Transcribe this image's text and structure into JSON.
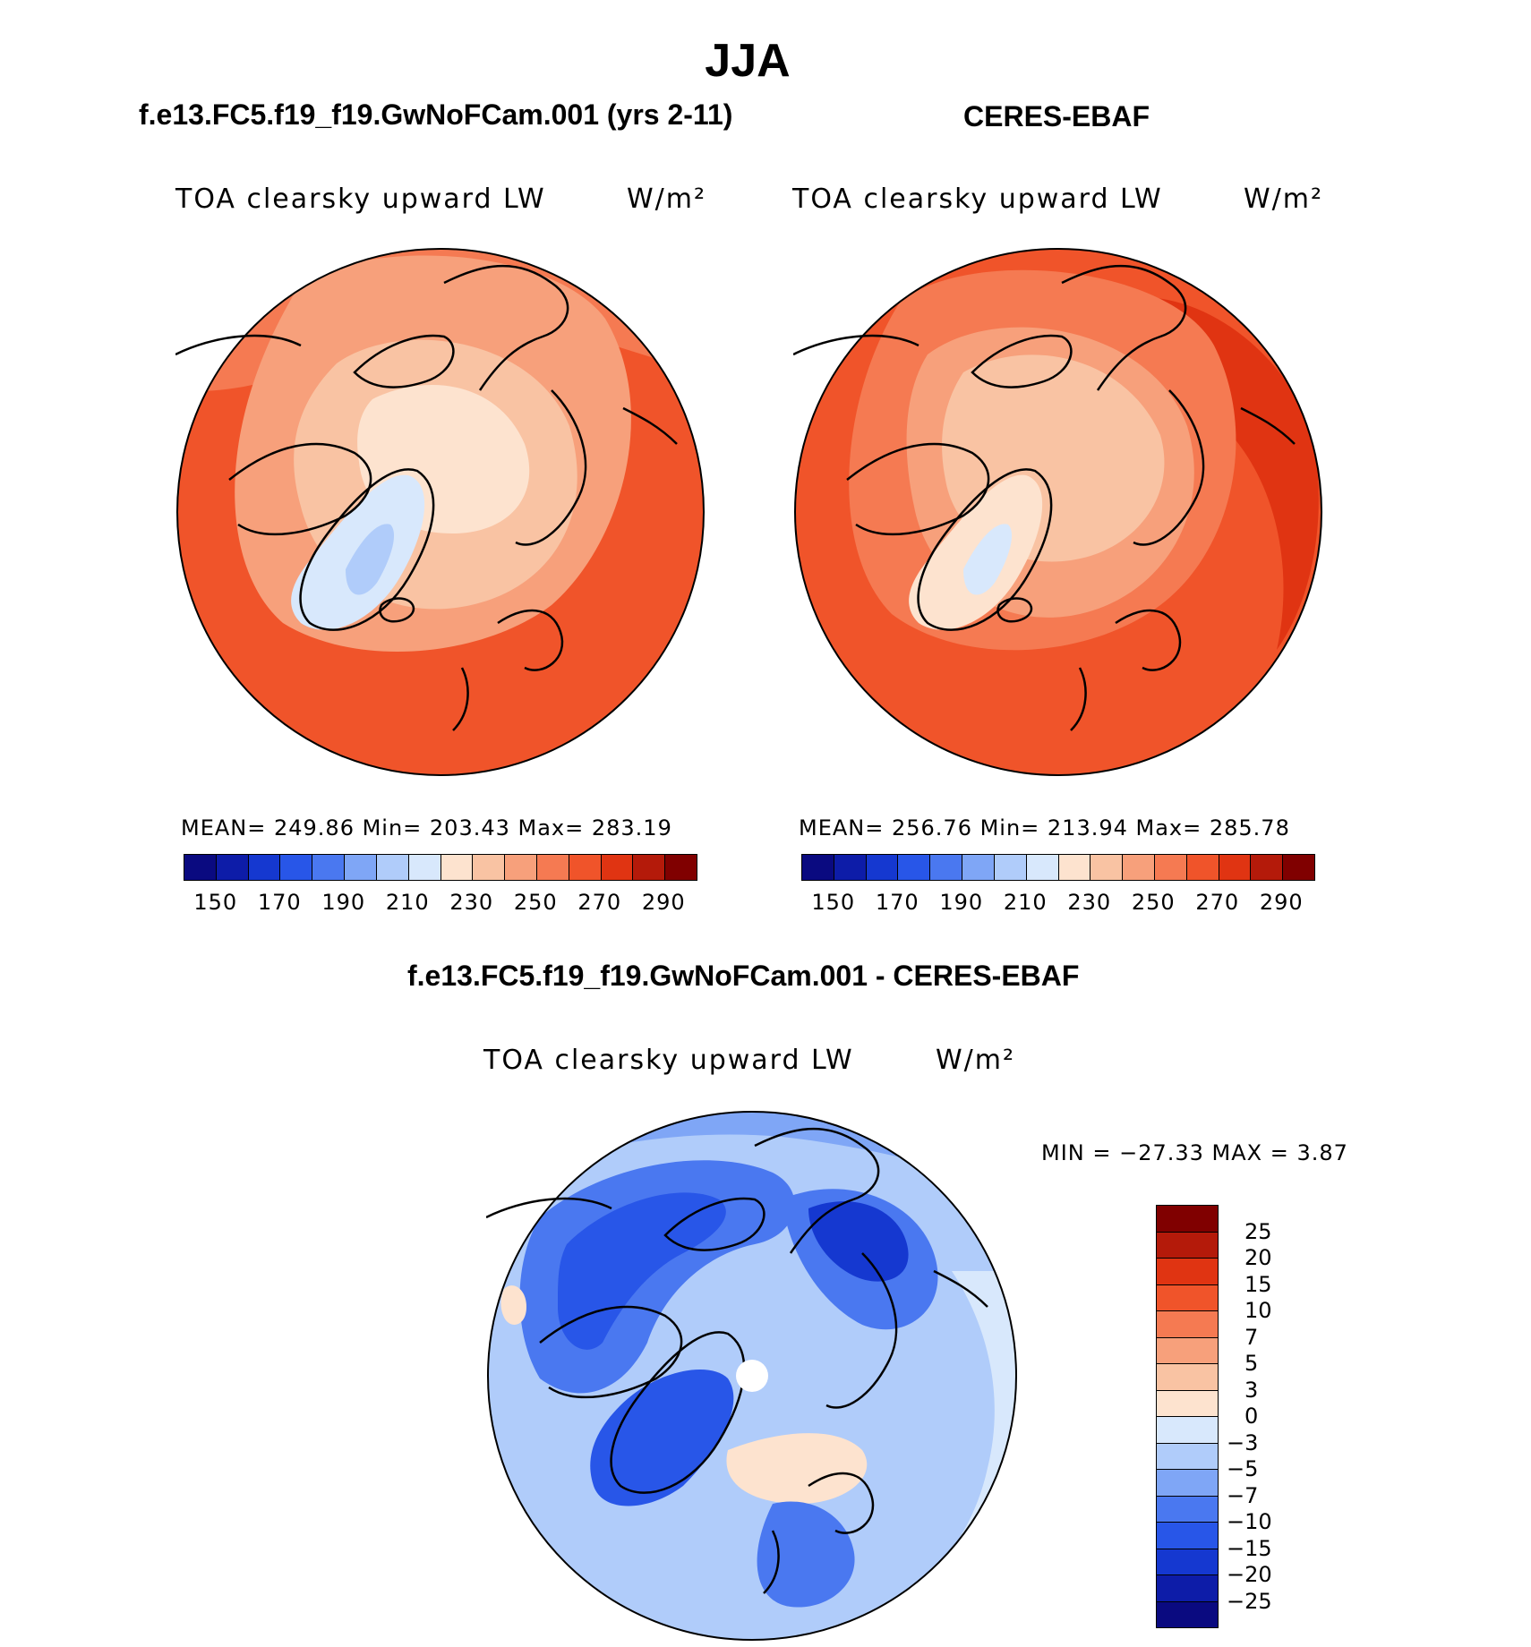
{
  "season": "JJA",
  "model_panel": {
    "title": "f.e13.FC5.f19_f19.GwNoFCam.001 (yrs 2-11)",
    "variable": "TOA clearsky upward LW",
    "units": "W/m²",
    "stats": "MEAN= 249.86   Min= 203.43   Max= 283.19"
  },
  "obs_panel": {
    "title": "CERES-EBAF",
    "variable": "TOA clearsky upward LW",
    "units": "W/m²",
    "stats": "MEAN= 256.76   Min= 213.94   Max= 285.78"
  },
  "diff_panel": {
    "title": "f.e13.FC5.f19_f19.GwNoFCam.001 - CERES-EBAF",
    "variable": "TOA clearsky upward LW",
    "units": "W/m²",
    "stats": "MIN = −27.33 MAX =    3.87"
  },
  "abs_colorbar": {
    "ticks": [
      "150",
      "170",
      "190",
      "210",
      "230",
      "250",
      "270",
      "290"
    ],
    "colors": [
      "#0a0a80",
      "#0d1ca8",
      "#1538d0",
      "#2856e8",
      "#4a78f0",
      "#7fa6f6",
      "#b0ccfa",
      "#d8e8fc",
      "#fde3cf",
      "#f9c3a3",
      "#f7a07b",
      "#f57a52",
      "#f0542a",
      "#e03412",
      "#b41a0a",
      "#800000"
    ]
  },
  "diff_colorbar": {
    "ticks": [
      "25",
      "20",
      "15",
      "10",
      "7",
      "5",
      "3",
      "0",
      "−3",
      "−5",
      "−7",
      "−10",
      "−15",
      "−20",
      "−25"
    ],
    "colors": [
      "#800000",
      "#b41a0a",
      "#e03412",
      "#f0542a",
      "#f57a52",
      "#f7a07b",
      "#f9c3a3",
      "#fde3cf",
      "#d8e8fc",
      "#b0ccfa",
      "#7fa6f6",
      "#4a78f0",
      "#2856e8",
      "#1538d0",
      "#0d1ca8",
      "#0a0a80"
    ]
  }
}
